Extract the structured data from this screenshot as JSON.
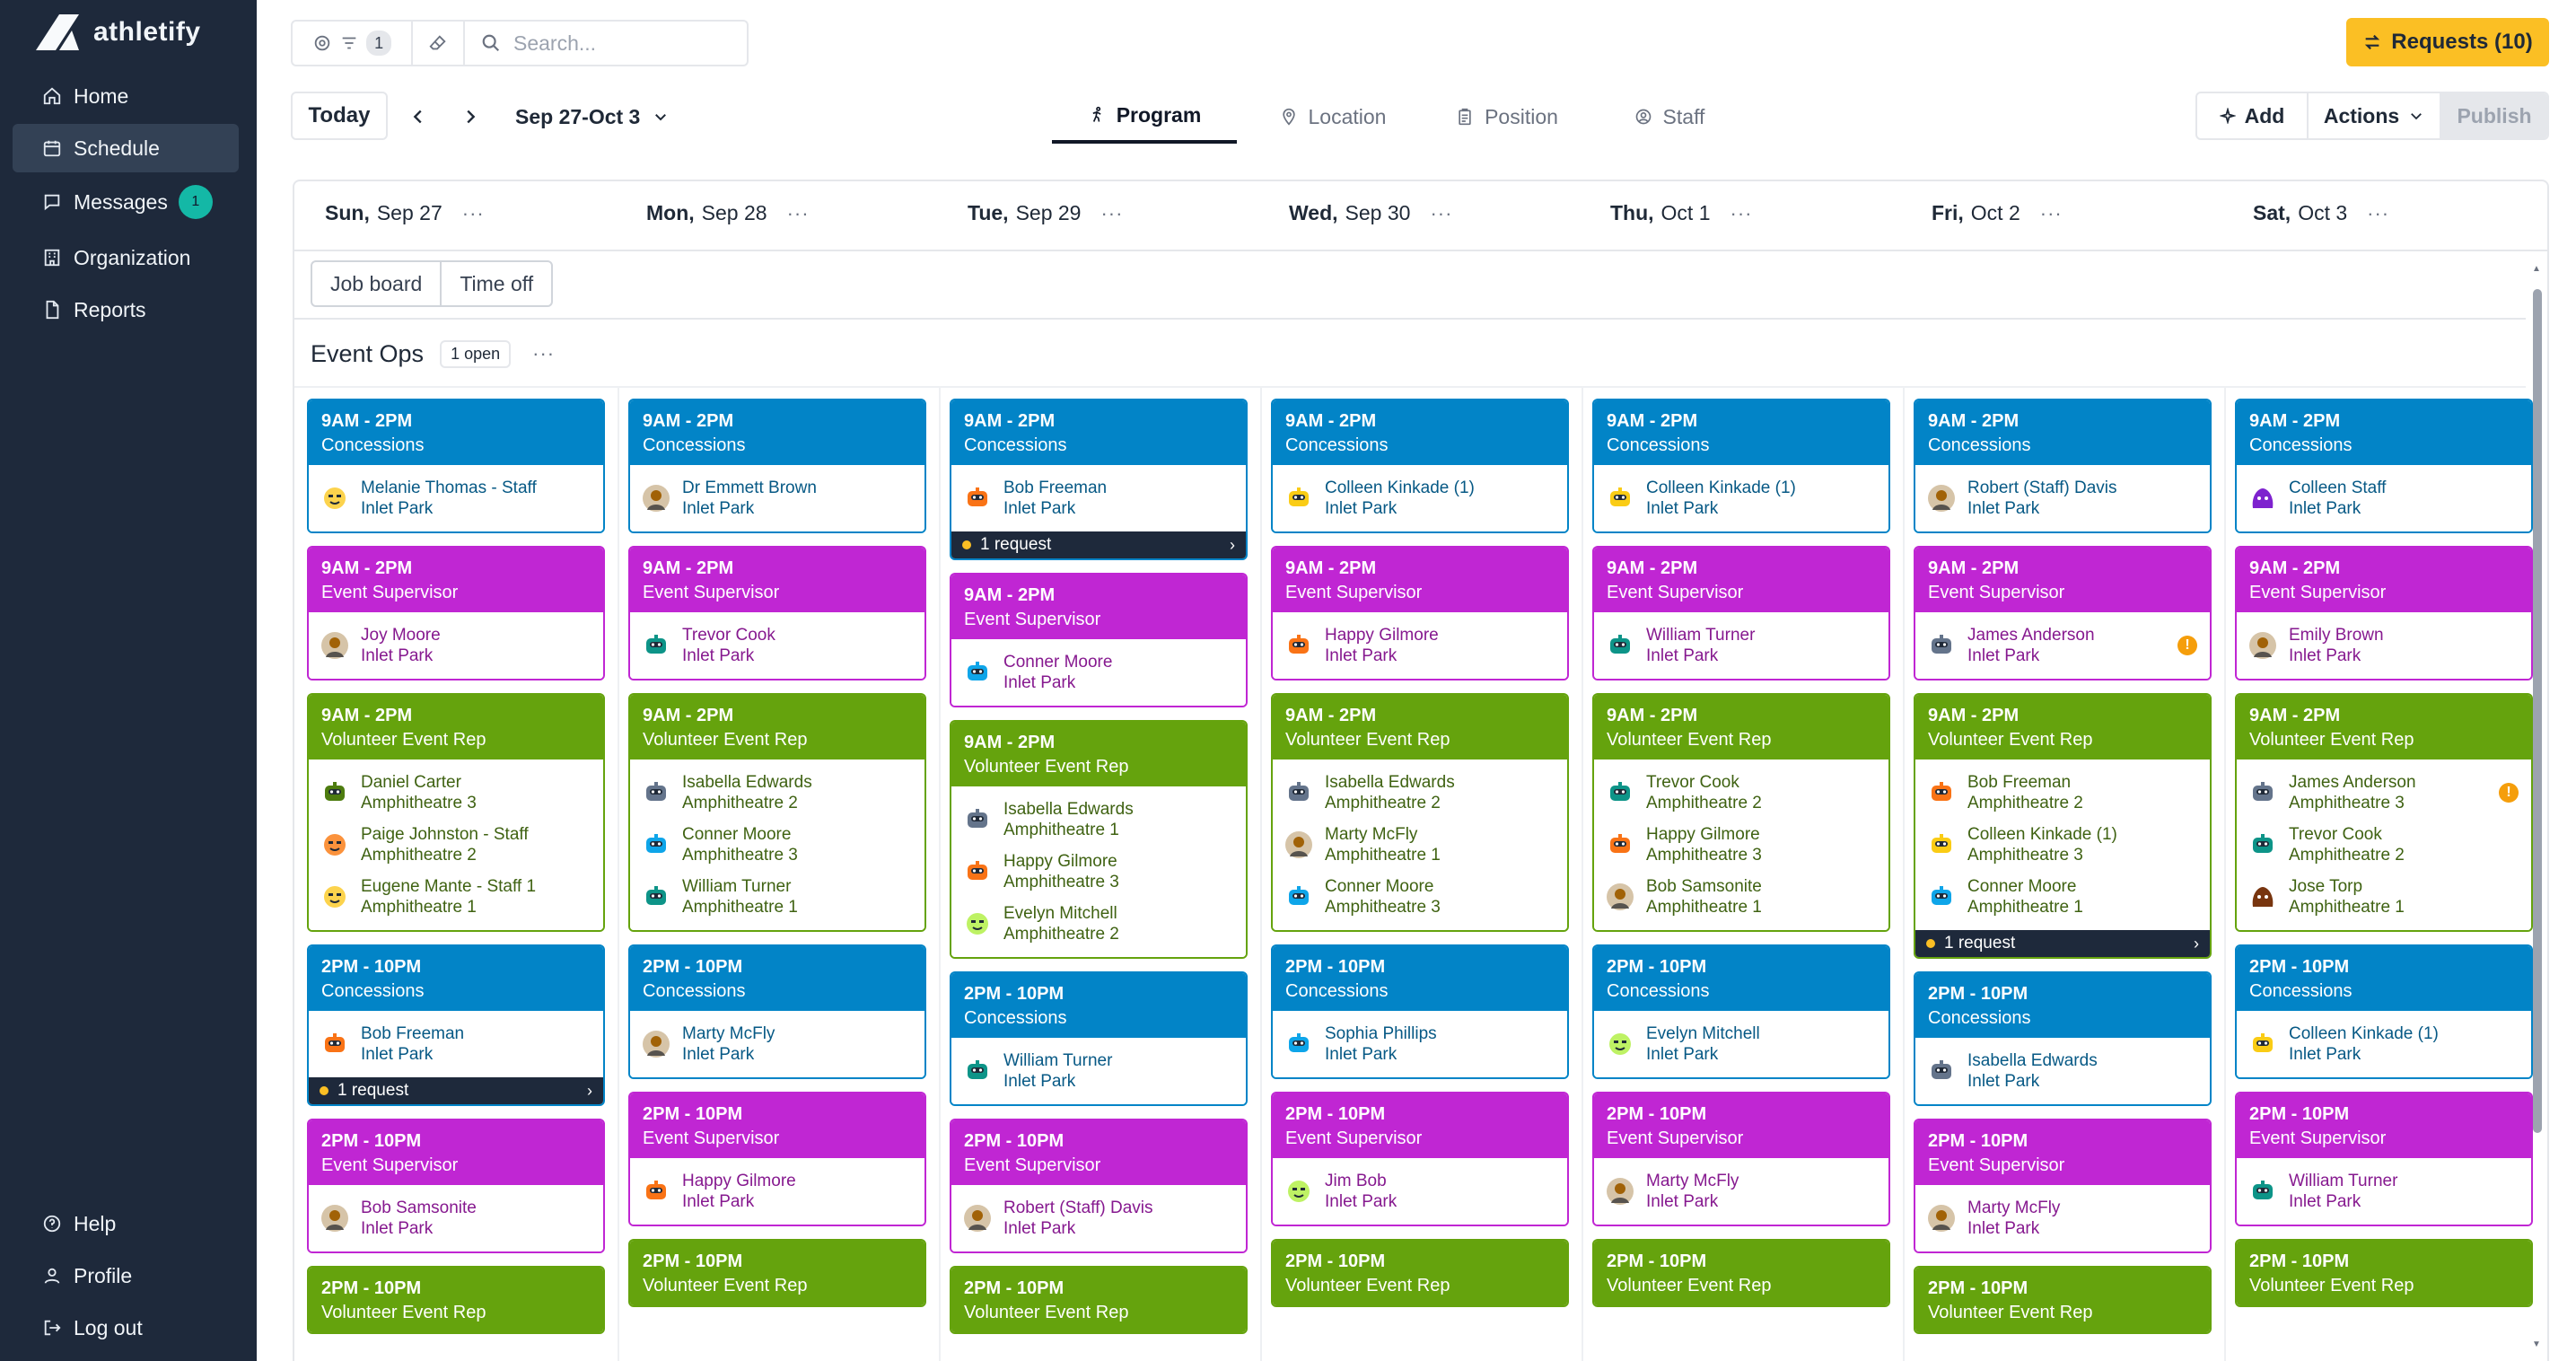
{
  "brand": {
    "name": "athletify"
  },
  "sidebar": {
    "items": [
      {
        "label": "Home",
        "icon": "home-icon"
      },
      {
        "label": "Schedule",
        "icon": "calendar-icon",
        "active": true
      },
      {
        "label": "Messages",
        "icon": "chat-icon",
        "badge": "1"
      },
      {
        "label": "Organization",
        "icon": "building-icon"
      },
      {
        "label": "Reports",
        "icon": "document-icon"
      }
    ],
    "footer": [
      {
        "label": "Help",
        "icon": "help-icon"
      },
      {
        "label": "Profile",
        "icon": "profile-icon"
      },
      {
        "label": "Log out",
        "icon": "logout-icon"
      }
    ]
  },
  "topbar": {
    "filter_count": "1",
    "search_placeholder": "Search...",
    "requests_label": "Requests (10)"
  },
  "toolbar": {
    "today": "Today",
    "date_range": "Sep 27-Oct 3",
    "tabs": [
      "Program",
      "Location",
      "Position",
      "Staff"
    ],
    "add": "Add",
    "actions": "Actions",
    "publish": "Publish"
  },
  "days": [
    {
      "dow": "Sun,",
      "date": "Sep 27"
    },
    {
      "dow": "Mon,",
      "date": "Sep 28"
    },
    {
      "dow": "Tue,",
      "date": "Sep 29"
    },
    {
      "dow": "Wed,",
      "date": "Sep 30"
    },
    {
      "dow": "Thu,",
      "date": "Oct 1"
    },
    {
      "dow": "Fri,",
      "date": "Oct 2"
    },
    {
      "dow": "Sat,",
      "date": "Oct 3"
    }
  ],
  "subtabs": [
    "Job board",
    "Time off"
  ],
  "group": {
    "name": "Event Ops",
    "open": "1 open"
  },
  "colors": {
    "concessions": "#0284c7",
    "supervisor": "#c026d3",
    "volunteer": "#65a30d",
    "sidebar": "#1e293b",
    "requests": "#fbbf24"
  },
  "columns": [
    {
      "shifts": [
        {
          "time": "9AM - 2PM",
          "role": "Concessions",
          "color": "blue",
          "people": [
            {
              "name": "Melanie Thomas - Staff",
              "loc": "Inlet Park",
              "avatar": "yellow-face"
            }
          ]
        },
        {
          "time": "9AM - 2PM",
          "role": "Event Supervisor",
          "color": "pink",
          "people": [
            {
              "name": "Joy Moore",
              "loc": "Inlet Park",
              "avatar": "photo"
            }
          ]
        },
        {
          "time": "9AM - 2PM",
          "role": "Volunteer Event Rep",
          "color": "green",
          "people": [
            {
              "name": "Daniel Carter",
              "loc": "Amphitheatre 3",
              "avatar": "green-robot"
            },
            {
              "name": "Paige Johnston - Staff",
              "loc": "Amphitheatre 2",
              "avatar": "orange-face"
            },
            {
              "name": "Eugene Mante - Staff 1",
              "loc": "Amphitheatre 1",
              "avatar": "yellow-face"
            }
          ]
        },
        {
          "time": "2PM - 10PM",
          "role": "Concessions",
          "color": "blue",
          "people": [
            {
              "name": "Bob Freeman",
              "loc": "Inlet Park",
              "avatar": "orange-robot"
            }
          ],
          "request": "1 request"
        },
        {
          "time": "2PM - 10PM",
          "role": "Event Supervisor",
          "color": "pink",
          "people": [
            {
              "name": "Bob Samsonite",
              "loc": "Inlet Park",
              "avatar": "photo"
            }
          ]
        },
        {
          "time": "2PM - 10PM",
          "role": "Volunteer Event Rep",
          "color": "green",
          "people": []
        }
      ]
    },
    {
      "shifts": [
        {
          "time": "9AM - 2PM",
          "role": "Concessions",
          "color": "blue",
          "people": [
            {
              "name": "Dr Emmett Brown",
              "loc": "Inlet Park",
              "avatar": "photo"
            }
          ]
        },
        {
          "time": "9AM - 2PM",
          "role": "Event Supervisor",
          "color": "pink",
          "people": [
            {
              "name": "Trevor Cook",
              "loc": "Inlet Park",
              "avatar": "teal-robot"
            }
          ]
        },
        {
          "time": "9AM - 2PM",
          "role": "Volunteer Event Rep",
          "color": "green",
          "people": [
            {
              "name": "Isabella Edwards",
              "loc": "Amphitheatre 2",
              "avatar": "grey-robot"
            },
            {
              "name": "Conner Moore",
              "loc": "Amphitheatre 3",
              "avatar": "blue-robot"
            },
            {
              "name": "William Turner",
              "loc": "Amphitheatre 1",
              "avatar": "teal-robot"
            }
          ]
        },
        {
          "time": "2PM - 10PM",
          "role": "Concessions",
          "color": "blue",
          "people": [
            {
              "name": "Marty McFly",
              "loc": "Inlet Park",
              "avatar": "photo"
            }
          ]
        },
        {
          "time": "2PM - 10PM",
          "role": "Event Supervisor",
          "color": "pink",
          "people": [
            {
              "name": "Happy Gilmore",
              "loc": "Inlet Park",
              "avatar": "orange-robot"
            }
          ]
        },
        {
          "time": "2PM - 10PM",
          "role": "Volunteer Event Rep",
          "color": "green",
          "people": []
        }
      ]
    },
    {
      "shifts": [
        {
          "time": "9AM - 2PM",
          "role": "Concessions",
          "color": "blue",
          "people": [
            {
              "name": "Bob Freeman",
              "loc": "Inlet Park",
              "avatar": "orange-robot"
            }
          ],
          "request": "1 request"
        },
        {
          "time": "9AM - 2PM",
          "role": "Event Supervisor",
          "color": "pink",
          "people": [
            {
              "name": "Conner Moore",
              "loc": "Inlet Park",
              "avatar": "blue-robot"
            }
          ]
        },
        {
          "time": "9AM - 2PM",
          "role": "Volunteer Event Rep",
          "color": "green",
          "people": [
            {
              "name": "Isabella Edwards",
              "loc": "Amphitheatre 1",
              "avatar": "grey-robot"
            },
            {
              "name": "Happy Gilmore",
              "loc": "Amphitheatre 3",
              "avatar": "orange-robot"
            },
            {
              "name": "Evelyn Mitchell",
              "loc": "Amphitheatre 2",
              "avatar": "lime-face"
            }
          ]
        },
        {
          "time": "2PM - 10PM",
          "role": "Concessions",
          "color": "blue",
          "people": [
            {
              "name": "William Turner",
              "loc": "Inlet Park",
              "avatar": "teal-robot"
            }
          ]
        },
        {
          "time": "2PM - 10PM",
          "role": "Event Supervisor",
          "color": "pink",
          "people": [
            {
              "name": "Robert (Staff) Davis",
              "loc": "Inlet Park",
              "avatar": "photo"
            }
          ]
        },
        {
          "time": "2PM - 10PM",
          "role": "Volunteer Event Rep",
          "color": "green",
          "people": []
        }
      ]
    },
    {
      "shifts": [
        {
          "time": "9AM - 2PM",
          "role": "Concessions",
          "color": "blue",
          "people": [
            {
              "name": "Colleen Kinkade (1)",
              "loc": "Inlet Park",
              "avatar": "yellow-robot"
            }
          ]
        },
        {
          "time": "9AM - 2PM",
          "role": "Event Supervisor",
          "color": "pink",
          "people": [
            {
              "name": "Happy Gilmore",
              "loc": "Inlet Park",
              "avatar": "orange-robot"
            }
          ]
        },
        {
          "time": "9AM - 2PM",
          "role": "Volunteer Event Rep",
          "color": "green",
          "people": [
            {
              "name": "Isabella Edwards",
              "loc": "Amphitheatre 2",
              "avatar": "grey-robot"
            },
            {
              "name": "Marty McFly",
              "loc": "Amphitheatre 1",
              "avatar": "photo"
            },
            {
              "name": "Conner Moore",
              "loc": "Amphitheatre 3",
              "avatar": "blue-robot"
            }
          ]
        },
        {
          "time": "2PM - 10PM",
          "role": "Concessions",
          "color": "blue",
          "people": [
            {
              "name": "Sophia Phillips",
              "loc": "Inlet Park",
              "avatar": "blue-robot"
            }
          ]
        },
        {
          "time": "2PM - 10PM",
          "role": "Event Supervisor",
          "color": "pink",
          "people": [
            {
              "name": "Jim Bob",
              "loc": "Inlet Park",
              "avatar": "lime-face"
            }
          ]
        },
        {
          "time": "2PM - 10PM",
          "role": "Volunteer Event Rep",
          "color": "green",
          "people": []
        }
      ]
    },
    {
      "shifts": [
        {
          "time": "9AM - 2PM",
          "role": "Concessions",
          "color": "blue",
          "people": [
            {
              "name": "Colleen Kinkade (1)",
              "loc": "Inlet Park",
              "avatar": "yellow-robot"
            }
          ]
        },
        {
          "time": "9AM - 2PM",
          "role": "Event Supervisor",
          "color": "pink",
          "people": [
            {
              "name": "William Turner",
              "loc": "Inlet Park",
              "avatar": "teal-robot"
            }
          ]
        },
        {
          "time": "9AM - 2PM",
          "role": "Volunteer Event Rep",
          "color": "green",
          "people": [
            {
              "name": "Trevor Cook",
              "loc": "Amphitheatre 2",
              "avatar": "teal-robot"
            },
            {
              "name": "Happy Gilmore",
              "loc": "Amphitheatre 3",
              "avatar": "orange-robot"
            },
            {
              "name": "Bob Samsonite",
              "loc": "Amphitheatre 1",
              "avatar": "photo"
            }
          ]
        },
        {
          "time": "2PM - 10PM",
          "role": "Concessions",
          "color": "blue",
          "people": [
            {
              "name": "Evelyn Mitchell",
              "loc": "Inlet Park",
              "avatar": "lime-face"
            }
          ]
        },
        {
          "time": "2PM - 10PM",
          "role": "Event Supervisor",
          "color": "pink",
          "people": [
            {
              "name": "Marty McFly",
              "loc": "Inlet Park",
              "avatar": "photo"
            }
          ]
        },
        {
          "time": "2PM - 10PM",
          "role": "Volunteer Event Rep",
          "color": "green",
          "people": []
        }
      ]
    },
    {
      "shifts": [
        {
          "time": "9AM - 2PM",
          "role": "Concessions",
          "color": "blue",
          "people": [
            {
              "name": "Robert (Staff) Davis",
              "loc": "Inlet Park",
              "avatar": "photo"
            }
          ]
        },
        {
          "time": "9AM - 2PM",
          "role": "Event Supervisor",
          "color": "pink",
          "people": [
            {
              "name": "James Anderson",
              "loc": "Inlet Park",
              "avatar": "grey-robot",
              "warn": true
            }
          ]
        },
        {
          "time": "9AM - 2PM",
          "role": "Volunteer Event Rep",
          "color": "green",
          "people": [
            {
              "name": "Bob Freeman",
              "loc": "Amphitheatre 2",
              "avatar": "orange-robot"
            },
            {
              "name": "Colleen Kinkade (1)",
              "loc": "Amphitheatre 3",
              "avatar": "yellow-robot"
            },
            {
              "name": "Conner Moore",
              "loc": "Amphitheatre 1",
              "avatar": "blue-robot"
            }
          ],
          "request": "1 request"
        },
        {
          "time": "2PM - 10PM",
          "role": "Concessions",
          "color": "blue",
          "people": [
            {
              "name": "Isabella Edwards",
              "loc": "Inlet Park",
              "avatar": "grey-robot"
            }
          ]
        },
        {
          "time": "2PM - 10PM",
          "role": "Event Supervisor",
          "color": "pink",
          "people": [
            {
              "name": "Marty McFly",
              "loc": "Inlet Park",
              "avatar": "photo"
            }
          ]
        },
        {
          "time": "2PM - 10PM",
          "role": "Volunteer Event Rep",
          "color": "green",
          "people": []
        }
      ]
    },
    {
      "shifts": [
        {
          "time": "9AM - 2PM",
          "role": "Concessions",
          "color": "blue",
          "people": [
            {
              "name": "Colleen Staff",
              "loc": "Inlet Park",
              "avatar": "purple-blob"
            }
          ]
        },
        {
          "time": "9AM - 2PM",
          "role": "Event Supervisor",
          "color": "pink",
          "people": [
            {
              "name": "Emily Brown",
              "loc": "Inlet Park",
              "avatar": "photo"
            }
          ]
        },
        {
          "time": "9AM - 2PM",
          "role": "Volunteer Event Rep",
          "color": "green",
          "people": [
            {
              "name": "James Anderson",
              "loc": "Amphitheatre 3",
              "avatar": "grey-robot",
              "warn": true
            },
            {
              "name": "Trevor Cook",
              "loc": "Amphitheatre 2",
              "avatar": "teal-robot"
            },
            {
              "name": "Jose Torp",
              "loc": "Amphitheatre 1",
              "avatar": "brown-blob"
            }
          ]
        },
        {
          "time": "2PM - 10PM",
          "role": "Concessions",
          "color": "blue",
          "people": [
            {
              "name": "Colleen Kinkade (1)",
              "loc": "Inlet Park",
              "avatar": "yellow-robot"
            }
          ]
        },
        {
          "time": "2PM - 10PM",
          "role": "Event Supervisor",
          "color": "pink",
          "people": [
            {
              "name": "William Turner",
              "loc": "Inlet Park",
              "avatar": "teal-robot"
            }
          ]
        },
        {
          "time": "2PM - 10PM",
          "role": "Volunteer Event Rep",
          "color": "green",
          "people": []
        }
      ]
    }
  ]
}
